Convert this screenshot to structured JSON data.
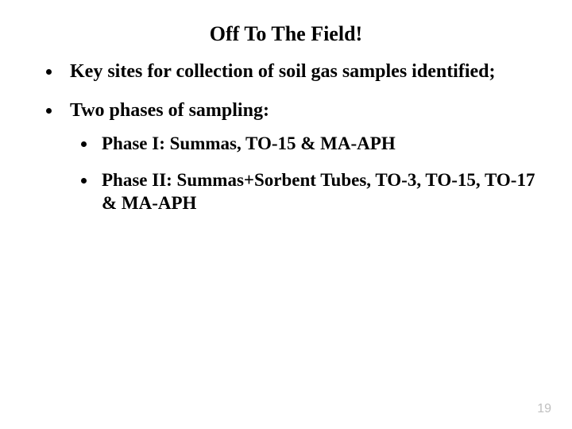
{
  "slide": {
    "title": "Off To The Field!",
    "bullets": [
      {
        "text": "Key sites for collection of soil gas samples identified;"
      },
      {
        "text": "Two phases of sampling:",
        "children": [
          {
            "text": "Phase I: Summas, TO-15 & MA-APH"
          },
          {
            "text": "Phase II: Summas+Sorbent Tubes, TO-3, TO-15, TO-17 & MA-APH"
          }
        ]
      }
    ],
    "page_number": "19",
    "colors": {
      "background": "#ffffff",
      "text": "#000000",
      "page_number": "#bfbfbf"
    },
    "typography": {
      "title_fontsize_pt": 20,
      "body_fontsize_pt": 18,
      "font_family": "Times New Roman",
      "font_weight": "bold"
    }
  }
}
